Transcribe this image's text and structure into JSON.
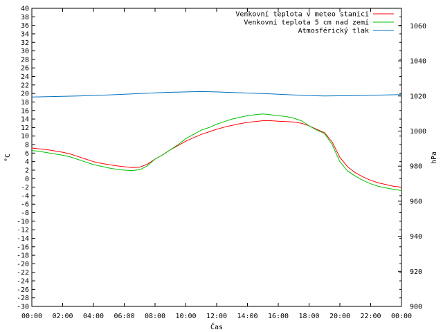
{
  "chart_data": {
    "type": "line",
    "xlabel": "Čas",
    "ylabel_left": "°C",
    "ylabel_right": "hPa",
    "x_ticks": [
      "00:00",
      "02:00",
      "04:00",
      "06:00",
      "08:00",
      "10:00",
      "12:00",
      "14:00",
      "16:00",
      "18:00",
      "20:00",
      "22:00",
      "00:00"
    ],
    "y_left_range": [
      -30,
      40
    ],
    "y_left_step": 2,
    "y_right_range": [
      900,
      1070
    ],
    "y_right_ticks": [
      900,
      920,
      940,
      960,
      980,
      1000,
      1020,
      1040,
      1060
    ],
    "grid": false,
    "legend_position": "top-right",
    "series": [
      {
        "name": "Venkovní teplota v meteo stanici",
        "axis": "left",
        "color": "#ff0000",
        "x": [
          0,
          0.5,
          1,
          1.5,
          2,
          2.5,
          3,
          3.5,
          4,
          4.5,
          5,
          5.5,
          6,
          6.5,
          7,
          7.5,
          8,
          8.5,
          9,
          9.5,
          10,
          10.5,
          11,
          11.5,
          12,
          12.5,
          13,
          13.5,
          14,
          14.5,
          15,
          15.5,
          16,
          16.5,
          17,
          17.5,
          18,
          18.5,
          19,
          19.5,
          20,
          20.5,
          21,
          21.5,
          22,
          22.5,
          23,
          23.5,
          24
        ],
        "y": [
          7.2,
          7.0,
          6.8,
          6.5,
          6.2,
          5.8,
          5.2,
          4.6,
          4.0,
          3.6,
          3.3,
          3.0,
          2.8,
          2.6,
          2.7,
          3.4,
          4.6,
          5.6,
          6.8,
          7.8,
          8.8,
          9.6,
          10.4,
          11.0,
          11.6,
          12.1,
          12.5,
          12.9,
          13.2,
          13.4,
          13.6,
          13.6,
          13.5,
          13.4,
          13.3,
          13.0,
          12.4,
          11.6,
          10.8,
          8.6,
          5.0,
          2.8,
          1.4,
          0.4,
          -0.4,
          -1.0,
          -1.4,
          -1.8,
          -2.0
        ]
      },
      {
        "name": "Venkovní teplota 5 cm nad zemí",
        "axis": "left",
        "color": "#00c000",
        "x": [
          0,
          0.5,
          1,
          1.5,
          2,
          2.5,
          3,
          3.5,
          4,
          4.5,
          5,
          5.5,
          6,
          6.5,
          7,
          7.5,
          8,
          8.5,
          9,
          9.5,
          10,
          10.5,
          11,
          11.5,
          12,
          12.5,
          13,
          13.5,
          14,
          14.5,
          15,
          15.5,
          16,
          16.5,
          17,
          17.5,
          18,
          18.5,
          19,
          19.5,
          20,
          20.5,
          21,
          21.5,
          22,
          22.5,
          23,
          23.5,
          24
        ],
        "y": [
          6.6,
          6.4,
          6.1,
          5.8,
          5.5,
          5.1,
          4.5,
          3.9,
          3.3,
          2.9,
          2.5,
          2.2,
          2.0,
          1.9,
          2.1,
          3.0,
          4.6,
          5.6,
          6.8,
          8.0,
          9.4,
          10.4,
          11.4,
          12.0,
          12.8,
          13.4,
          14.0,
          14.4,
          14.8,
          15.0,
          15.2,
          15.0,
          14.8,
          14.6,
          14.2,
          13.6,
          12.4,
          11.4,
          10.6,
          8.0,
          4.0,
          1.8,
          0.6,
          -0.4,
          -1.2,
          -1.8,
          -2.2,
          -2.5,
          -2.8
        ]
      },
      {
        "name": "Atmosférický tlak",
        "axis": "right",
        "color": "#0070c0",
        "x": [
          0,
          1,
          2,
          3,
          4,
          5,
          6,
          7,
          8,
          9,
          10,
          11,
          12,
          13,
          14,
          15,
          16,
          17,
          18,
          19,
          20,
          21,
          22,
          23,
          24
        ],
        "y": [
          1019.4,
          1019.6,
          1019.8,
          1020.0,
          1020.3,
          1020.6,
          1021.0,
          1021.4,
          1021.8,
          1022.1,
          1022.3,
          1022.5,
          1022.3,
          1022.0,
          1021.7,
          1021.4,
          1021.0,
          1020.6,
          1020.2,
          1020.0,
          1020.1,
          1020.2,
          1020.4,
          1020.6,
          1020.8
        ]
      }
    ]
  }
}
